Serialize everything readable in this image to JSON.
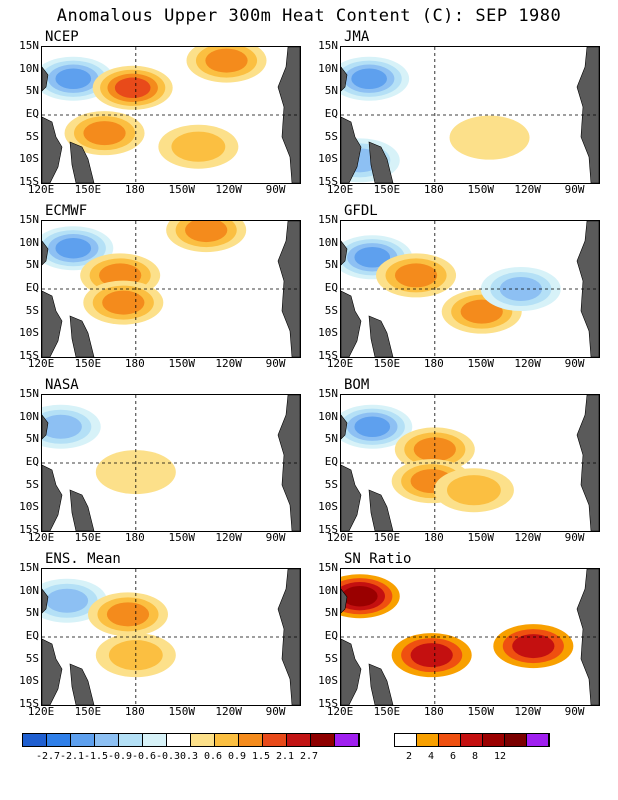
{
  "title": "Anomalous Upper 300m Heat Content (C): SEP 1980",
  "chart_data": [
    {
      "type": "heatmap",
      "title": "NCEP",
      "xlabels": [
        "120E",
        "150E",
        "180",
        "150W",
        "120W",
        "90W"
      ],
      "ylabels": [
        "15N",
        "10N",
        "5N",
        "EQ",
        "5S",
        "10S",
        "15S"
      ],
      "blobs": [
        {
          "lon": 140,
          "lat": 8,
          "value": -1.5
        },
        {
          "lon": 178,
          "lat": 6,
          "value": 1.5
        },
        {
          "lon": 160,
          "lat": -4,
          "value": 0.9
        },
        {
          "lon": 220,
          "lat": -7,
          "value": 0.6
        },
        {
          "lon": 238,
          "lat": 12,
          "value": 1.2
        }
      ]
    },
    {
      "type": "heatmap",
      "title": "JMA",
      "xlabels": [
        "120E",
        "150E",
        "180",
        "150W",
        "120W",
        "90W"
      ],
      "ylabels": [
        "15N",
        "10N",
        "5N",
        "EQ",
        "5S",
        "10S",
        "15S"
      ],
      "blobs": [
        {
          "lon": 138,
          "lat": 8,
          "value": -1.5
        },
        {
          "lon": 132,
          "lat": -10,
          "value": -0.9
        },
        {
          "lon": 215,
          "lat": -5,
          "value": 0.3
        }
      ]
    },
    {
      "type": "heatmap",
      "title": "ECMWF",
      "xlabels": [
        "120E",
        "150E",
        "180",
        "150W",
        "120W",
        "90W"
      ],
      "ylabels": [
        "15N",
        "10N",
        "5N",
        "EQ",
        "5S",
        "10S",
        "15S"
      ],
      "blobs": [
        {
          "lon": 140,
          "lat": 9,
          "value": -1.5
        },
        {
          "lon": 170,
          "lat": 3,
          "value": 0.9
        },
        {
          "lon": 172,
          "lat": -3,
          "value": 1.2
        },
        {
          "lon": 225,
          "lat": 13,
          "value": 0.9
        }
      ]
    },
    {
      "type": "heatmap",
      "title": "GFDL",
      "xlabels": [
        "120E",
        "150E",
        "180",
        "150W",
        "120W",
        "90W"
      ],
      "ylabels": [
        "15N",
        "10N",
        "5N",
        "EQ",
        "5S",
        "10S",
        "15S"
      ],
      "blobs": [
        {
          "lon": 140,
          "lat": 7,
          "value": -1.5
        },
        {
          "lon": 168,
          "lat": 3,
          "value": 0.9
        },
        {
          "lon": 210,
          "lat": -5,
          "value": 0.9
        },
        {
          "lon": 235,
          "lat": 0,
          "value": -0.9
        }
      ]
    },
    {
      "type": "heatmap",
      "title": "NASA",
      "xlabels": [
        "120E",
        "150E",
        "180",
        "150W",
        "120W",
        "90W"
      ],
      "ylabels": [
        "15N",
        "10N",
        "5N",
        "EQ",
        "5S",
        "10S",
        "15S"
      ],
      "blobs": [
        {
          "lon": 132,
          "lat": 8,
          "value": -0.9
        },
        {
          "lon": 180,
          "lat": -2,
          "value": 0.3
        }
      ]
    },
    {
      "type": "heatmap",
      "title": "BOM",
      "xlabels": [
        "120E",
        "150E",
        "180",
        "150W",
        "120W",
        "90W"
      ],
      "ylabels": [
        "15N",
        "10N",
        "5N",
        "EQ",
        "5S",
        "10S",
        "15S"
      ],
      "blobs": [
        {
          "lon": 140,
          "lat": 8,
          "value": -1.5
        },
        {
          "lon": 180,
          "lat": 3,
          "value": 0.9
        },
        {
          "lon": 178,
          "lat": -4,
          "value": 0.9
        },
        {
          "lon": 205,
          "lat": -6,
          "value": 0.6
        }
      ]
    },
    {
      "type": "heatmap",
      "title": "ENS. Mean",
      "xlabels": [
        "120E",
        "150E",
        "180",
        "150W",
        "120W",
        "90W"
      ],
      "ylabels": [
        "15N",
        "10N",
        "5N",
        "EQ",
        "5S",
        "10S",
        "15S"
      ],
      "blobs": [
        {
          "lon": 136,
          "lat": 8,
          "value": -1.2
        },
        {
          "lon": 175,
          "lat": 5,
          "value": 0.9
        },
        {
          "lon": 180,
          "lat": -4,
          "value": 0.6
        }
      ]
    },
    {
      "type": "heatmap",
      "title": "SN Ratio",
      "xlabels": [
        "120E",
        "150E",
        "180",
        "150W",
        "120W",
        "90W"
      ],
      "ylabels": [
        "15N",
        "10N",
        "5N",
        "EQ",
        "5S",
        "10S",
        "15S"
      ],
      "blobs": [
        {
          "lon": 132,
          "lat": 9,
          "value": 6
        },
        {
          "lon": 178,
          "lat": -4,
          "value": 4
        },
        {
          "lon": 243,
          "lat": -2,
          "value": 4
        }
      ]
    }
  ],
  "legend_anom": {
    "colors": [
      "#1f5fd0",
      "#2f7fe8",
      "#5ea0ee",
      "#8dc0f3",
      "#b4e0f6",
      "#d7f2f8",
      "#ffffff",
      "#fce08a",
      "#fbbf41",
      "#f48b1c",
      "#e84a1a",
      "#c21414",
      "#8e0000",
      "#a020f0"
    ],
    "labels": [
      "-2.7",
      "-2.1",
      "-1.5",
      "-0.9",
      "-0.6",
      "-0.3",
      "0.3",
      "0.6",
      "0.9",
      "1.5",
      "2.1",
      "2.7"
    ]
  },
  "legend_sn": {
    "colors": [
      "#ffffff",
      "#f8a000",
      "#ef5010",
      "#c41010",
      "#9a0000",
      "#7a0000",
      "#a020f0"
    ],
    "labels": [
      "2",
      "4",
      "6",
      "8",
      "12"
    ]
  }
}
